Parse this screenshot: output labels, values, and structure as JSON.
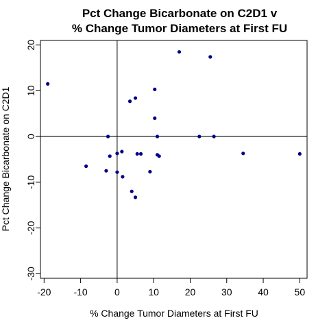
{
  "chart_data": {
    "type": "scatter",
    "title_lines": [
      "Pct Change Bicarbonate on C2D1 v",
      "% Change Tumor Diameters at First FU"
    ],
    "xlabel": "% Change Tumor Diameters at First FU",
    "ylabel": "Pct Change Bicarbonate on C2D1",
    "xlim": [
      -21,
      52
    ],
    "ylim": [
      -31,
      21
    ],
    "x_ticks": [
      -20,
      -10,
      0,
      10,
      20,
      30,
      40,
      50
    ],
    "y_ticks": [
      -30,
      -20,
      -10,
      0,
      10,
      20
    ],
    "x_tick_labels": [
      "-20",
      "-10",
      "0",
      "10",
      "20",
      "30",
      "40",
      "50"
    ],
    "y_tick_labels": [
      "-30",
      "-20",
      "-10",
      "0",
      "10",
      "20"
    ],
    "reference_lines": {
      "x": 0,
      "y": 0
    },
    "grid": false,
    "point_color": "#00008b",
    "points": [
      {
        "x": -19,
        "y": 11.5
      },
      {
        "x": -8.5,
        "y": -6.5
      },
      {
        "x": -2.5,
        "y": 0
      },
      {
        "x": -3,
        "y": -7.5
      },
      {
        "x": -2,
        "y": -4.3
      },
      {
        "x": 0,
        "y": -3.7
      },
      {
        "x": 0,
        "y": -7.8
      },
      {
        "x": 1.3,
        "y": -3.3
      },
      {
        "x": 1.5,
        "y": -8.8
      },
      {
        "x": 3.5,
        "y": 7.7
      },
      {
        "x": 4,
        "y": -12
      },
      {
        "x": 5,
        "y": 8.4
      },
      {
        "x": 5,
        "y": -13.3
      },
      {
        "x": 5.5,
        "y": -3.8
      },
      {
        "x": 6.5,
        "y": -3.8
      },
      {
        "x": 9,
        "y": -7.7
      },
      {
        "x": 10.3,
        "y": 10.3
      },
      {
        "x": 10.3,
        "y": 4
      },
      {
        "x": 11,
        "y": 0
      },
      {
        "x": 11,
        "y": -4
      },
      {
        "x": 11.5,
        "y": -4.3
      },
      {
        "x": 17,
        "y": 18.5
      },
      {
        "x": 22.5,
        "y": 0
      },
      {
        "x": 25.5,
        "y": 17.4
      },
      {
        "x": 26.5,
        "y": 0
      },
      {
        "x": 34.5,
        "y": -3.7
      },
      {
        "x": 50,
        "y": -3.8
      }
    ]
  }
}
